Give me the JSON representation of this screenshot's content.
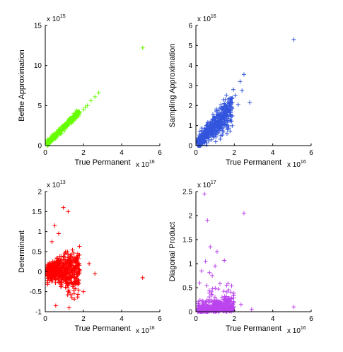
{
  "chart_data": [
    {
      "type": "scatter",
      "marker": "+",
      "color": "#66ff00",
      "xlabel": "True Permanent",
      "ylabel": "Bethe Approximation",
      "x_multiplier": {
        "base": "x 10",
        "exp": "16"
      },
      "y_multiplier": {
        "base": "x 10",
        "exp": "15"
      },
      "xlim": [
        0,
        6
      ],
      "ylim": [
        0,
        15
      ],
      "xticks": [
        "0",
        "2",
        "4",
        "6"
      ],
      "yticks": [
        "0",
        "5",
        "10",
        "15"
      ],
      "outliers": [
        {
          "x": 5.1,
          "y": 12.2
        },
        {
          "x": 2.8,
          "y": 6.6
        },
        {
          "x": 2.6,
          "y": 6.1
        },
        {
          "x": 2.4,
          "y": 5.6
        },
        {
          "x": 2.2,
          "y": 5.0
        },
        {
          "x": 2.1,
          "y": 4.8
        },
        {
          "x": 2.0,
          "y": 4.5
        }
      ],
      "cloud": {
        "x_range": [
          0.1,
          1.8
        ],
        "relation": "y ≈ 2.35 · x",
        "spread": 0.18,
        "count": 380
      }
    },
    {
      "type": "scatter",
      "marker": "+",
      "color": "#3355dd",
      "xlabel": "True Permanent",
      "ylabel": "Sampling Approximation",
      "x_multiplier": {
        "base": "x 10",
        "exp": "16"
      },
      "y_multiplier": {
        "base": "x 10",
        "exp": "16"
      },
      "xlim": [
        0,
        6
      ],
      "ylim": [
        0,
        6
      ],
      "xticks": [
        "0",
        "2",
        "4",
        "6"
      ],
      "yticks": [
        "0",
        "1",
        "2",
        "3",
        "4",
        "5",
        "6"
      ],
      "outliers": [
        {
          "x": 5.1,
          "y": 5.3
        },
        {
          "x": 2.5,
          "y": 3.55
        },
        {
          "x": 2.3,
          "y": 3.2
        },
        {
          "x": 1.95,
          "y": 2.8
        },
        {
          "x": 2.4,
          "y": 2.75
        },
        {
          "x": 2.05,
          "y": 2.5
        },
        {
          "x": 2.8,
          "y": 2.15
        },
        {
          "x": 1.8,
          "y": 2.3
        },
        {
          "x": 2.2,
          "y": 2.05
        }
      ],
      "cloud": {
        "x_range": [
          0.1,
          1.9
        ],
        "relation": "y ≈ 1.0 · x",
        "spread": 0.32,
        "count": 520
      }
    },
    {
      "type": "scatter",
      "marker": "+",
      "color": "#ff0000",
      "xlabel": "True Permanent",
      "ylabel": "Determinant",
      "x_multiplier": {
        "base": "x 10",
        "exp": "16"
      },
      "y_multiplier": {
        "base": "x 10",
        "exp": "13"
      },
      "xlim": [
        0,
        6
      ],
      "ylim": [
        -1,
        2
      ],
      "xticks": [
        "0",
        "2",
        "4",
        "6"
      ],
      "yticks": [
        "-1",
        "-0.5",
        "0",
        "0.5",
        "1",
        "1.5",
        "2"
      ],
      "outliers": [
        {
          "x": 0.95,
          "y": 1.6
        },
        {
          "x": 1.2,
          "y": 1.5
        },
        {
          "x": 0.5,
          "y": 1.15
        },
        {
          "x": 0.35,
          "y": 0.75
        },
        {
          "x": 0.7,
          "y": 0.95
        },
        {
          "x": 5.1,
          "y": -0.15
        },
        {
          "x": 1.25,
          "y": -0.9
        },
        {
          "x": 0.55,
          "y": -0.85
        },
        {
          "x": 2.0,
          "y": -0.5
        },
        {
          "x": 2.6,
          "y": -0.05
        },
        {
          "x": 2.3,
          "y": 0.2
        },
        {
          "x": 1.7,
          "y": 0.45
        }
      ],
      "cloud": {
        "x_range": [
          0.1,
          1.8
        ],
        "relation": "y ≈ 0 ± 0.25 · x",
        "spread": 0.28,
        "count": 560
      }
    },
    {
      "type": "scatter",
      "marker": "+",
      "color": "#bb44ee",
      "xlabel": "True Permanent",
      "ylabel": "Diagonal Product",
      "x_multiplier": {
        "base": "x 10",
        "exp": "16"
      },
      "y_multiplier": {
        "base": "x 10",
        "exp": "17"
      },
      "xlim": [
        0,
        6
      ],
      "ylim": [
        0,
        2.5
      ],
      "xticks": [
        "0",
        "2",
        "4",
        "6"
      ],
      "yticks": [
        "0",
        "0.5",
        "1",
        "1.5",
        "2",
        "2.5"
      ],
      "outliers": [
        {
          "x": 0.45,
          "y": 2.45
        },
        {
          "x": 2.5,
          "y": 2.05
        },
        {
          "x": 0.6,
          "y": 1.9
        },
        {
          "x": 0.75,
          "y": 1.35
        },
        {
          "x": 1.1,
          "y": 1.25
        },
        {
          "x": 0.5,
          "y": 1.05
        },
        {
          "x": 1.0,
          "y": 0.95
        },
        {
          "x": 5.1,
          "y": 0.1
        },
        {
          "x": 2.9,
          "y": 0.05
        },
        {
          "x": 2.35,
          "y": 0.15
        },
        {
          "x": 0.85,
          "y": 0.75
        },
        {
          "x": 0.3,
          "y": 0.85
        },
        {
          "x": 1.6,
          "y": 0.55
        },
        {
          "x": 0.2,
          "y": 0.6
        }
      ],
      "cloud": {
        "x_range": [
          0.1,
          2.0
        ],
        "relation": "y skewed near 0",
        "spread": 0.35,
        "count": 480
      }
    }
  ]
}
